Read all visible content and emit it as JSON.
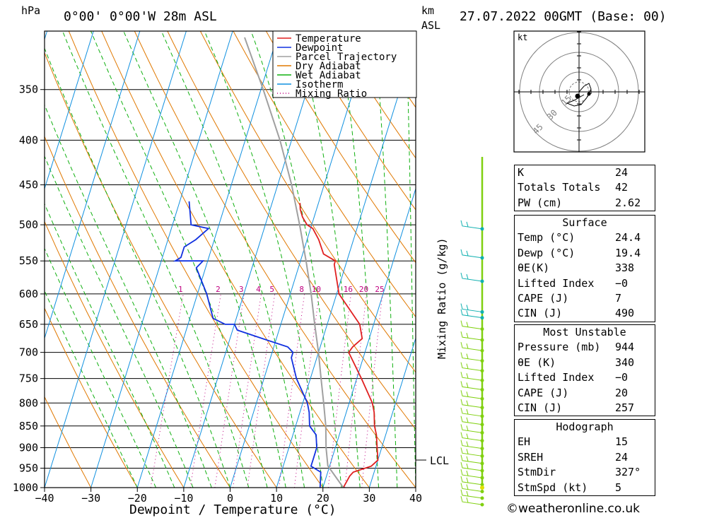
{
  "header": {
    "pressure_unit": "hPa",
    "location": "0°00' 0°00'W 28m ASL",
    "height_unit_line1": "km",
    "height_unit_line2": "ASL",
    "datetime": "27.07.2022 00GMT (Base: 00)"
  },
  "chart_data": {
    "type": "skew-t",
    "xlabel": "Dewpoint / Temperature (°C)",
    "ylabel": "Mixing Ratio (g/kg)",
    "x_ticks": [
      -40,
      -30,
      -20,
      -10,
      0,
      10,
      20,
      30,
      40
    ],
    "xlim": [
      -40,
      40
    ],
    "pressure_ticks": [
      350,
      400,
      450,
      500,
      550,
      600,
      650,
      700,
      750,
      800,
      850,
      900,
      950,
      1000
    ],
    "pressure_range": [
      300,
      1000
    ],
    "lcl_label": "LCL",
    "lcl_pressure": 944,
    "mixing_ratio_labels": [
      "1",
      "2",
      "3",
      "4",
      "5",
      "8",
      "10",
      "16",
      "20",
      "25"
    ],
    "mixing_ratio_values": [
      1,
      2,
      3,
      4,
      5,
      8,
      10,
      16,
      20,
      25
    ],
    "legend": [
      {
        "name": "Temperature",
        "color": "#e02020",
        "style": "solid"
      },
      {
        "name": "Dewpoint",
        "color": "#1030e0",
        "style": "solid"
      },
      {
        "name": "Parcel Trajectory",
        "color": "#a0a0a0",
        "style": "solid"
      },
      {
        "name": "Dry Adiabat",
        "color": "#e07800",
        "style": "solid"
      },
      {
        "name": "Wet Adiabat",
        "color": "#10b010",
        "style": "solid"
      },
      {
        "name": "Isotherm",
        "color": "#1090e0",
        "style": "solid"
      },
      {
        "name": "Mixing Ratio",
        "color": "#c00080",
        "style": "dotted"
      }
    ],
    "series": [
      {
        "name": "Temperature",
        "color": "#e02020",
        "points": [
          [
            1000,
            24.4
          ],
          [
            970,
            25
          ],
          [
            960,
            25.5
          ],
          [
            945,
            29
          ],
          [
            930,
            30
          ],
          [
            900,
            29
          ],
          [
            870,
            28
          ],
          [
            850,
            27
          ],
          [
            820,
            26
          ],
          [
            800,
            25
          ],
          [
            750,
            21
          ],
          [
            700,
            16.5
          ],
          [
            690,
            17
          ],
          [
            675,
            18.5
          ],
          [
            650,
            17
          ],
          [
            600,
            10.5
          ],
          [
            555,
            7.5
          ],
          [
            550,
            7.5
          ],
          [
            540,
            4.5
          ],
          [
            520,
            2.5
          ],
          [
            505,
            0.5
          ],
          [
            500,
            -1
          ],
          [
            490,
            -2.5
          ],
          [
            480,
            -3.5
          ],
          [
            472,
            -4
          ]
        ]
      },
      {
        "name": "Dewpoint",
        "color": "#1030e0",
        "points": [
          [
            1000,
            19.4
          ],
          [
            960,
            18.5
          ],
          [
            945,
            16
          ],
          [
            930,
            16
          ],
          [
            900,
            16
          ],
          [
            870,
            15
          ],
          [
            850,
            13
          ],
          [
            820,
            12
          ],
          [
            800,
            11
          ],
          [
            750,
            7
          ],
          [
            710,
            4.5
          ],
          [
            700,
            4.5
          ],
          [
            690,
            3
          ],
          [
            675,
            -3
          ],
          [
            660,
            -9
          ],
          [
            650,
            -10
          ],
          [
            650,
            -12
          ],
          [
            640,
            -15
          ],
          [
            600,
            -18
          ],
          [
            560,
            -22
          ],
          [
            550,
            -21
          ],
          [
            550,
            -27
          ],
          [
            545,
            -26
          ],
          [
            530,
            -26
          ],
          [
            520,
            -24
          ],
          [
            505,
            -22
          ],
          [
            500,
            -26
          ],
          [
            470,
            -28
          ]
        ]
      },
      {
        "name": "Parcel Trajectory",
        "color": "#a0a0a0",
        "points": [
          [
            1000,
            24.4
          ],
          [
            944,
            19.6
          ],
          [
            900,
            18
          ],
          [
            850,
            16.5
          ],
          [
            800,
            14.5
          ],
          [
            750,
            12.3
          ],
          [
            700,
            10
          ],
          [
            650,
            7.3
          ],
          [
            600,
            4.5
          ],
          [
            550,
            1.2
          ],
          [
            500,
            -2.6
          ],
          [
            450,
            -7
          ],
          [
            400,
            -12.5
          ],
          [
            350,
            -19.5
          ],
          [
            305,
            -27
          ]
        ]
      }
    ],
    "wind_profile_color": "#80d010",
    "wind_profile_upper_color": "#10b0b0"
  },
  "hodograph": {
    "unit": "kt",
    "ring_labels": [
      "15",
      "30",
      "45"
    ]
  },
  "indices": [
    {
      "label": "K",
      "value": "24"
    },
    {
      "label": "Totals Totals",
      "value": "42"
    },
    {
      "label": "PW (cm)",
      "value": "2.62"
    }
  ],
  "surface": {
    "title": "Surface",
    "rows": [
      {
        "label": "Temp (°C)",
        "value": "24.4"
      },
      {
        "label": "Dewp (°C)",
        "value": "19.4"
      },
      {
        "label": "θE(K)",
        "value": "338"
      },
      {
        "label": "Lifted Index",
        "value": "−0"
      },
      {
        "label": "CAPE (J)",
        "value": "7"
      },
      {
        "label": "CIN (J)",
        "value": "490"
      }
    ]
  },
  "most_unstable": {
    "title": "Most Unstable",
    "rows": [
      {
        "label": "Pressure (mb)",
        "value": "944"
      },
      {
        "label": "θE (K)",
        "value": "340"
      },
      {
        "label": "Lifted Index",
        "value": "−0"
      },
      {
        "label": "CAPE (J)",
        "value": "20"
      },
      {
        "label": "CIN (J)",
        "value": "257"
      }
    ]
  },
  "hodograph_stats": {
    "title": "Hodograph",
    "rows": [
      {
        "label": "EH",
        "value": "15"
      },
      {
        "label": "SREH",
        "value": "24"
      },
      {
        "label": "StmDir",
        "value": "327°"
      },
      {
        "label": "StmSpd (kt)",
        "value": "5"
      }
    ]
  },
  "footer": {
    "copyright": "©weatheronline.co.uk"
  }
}
